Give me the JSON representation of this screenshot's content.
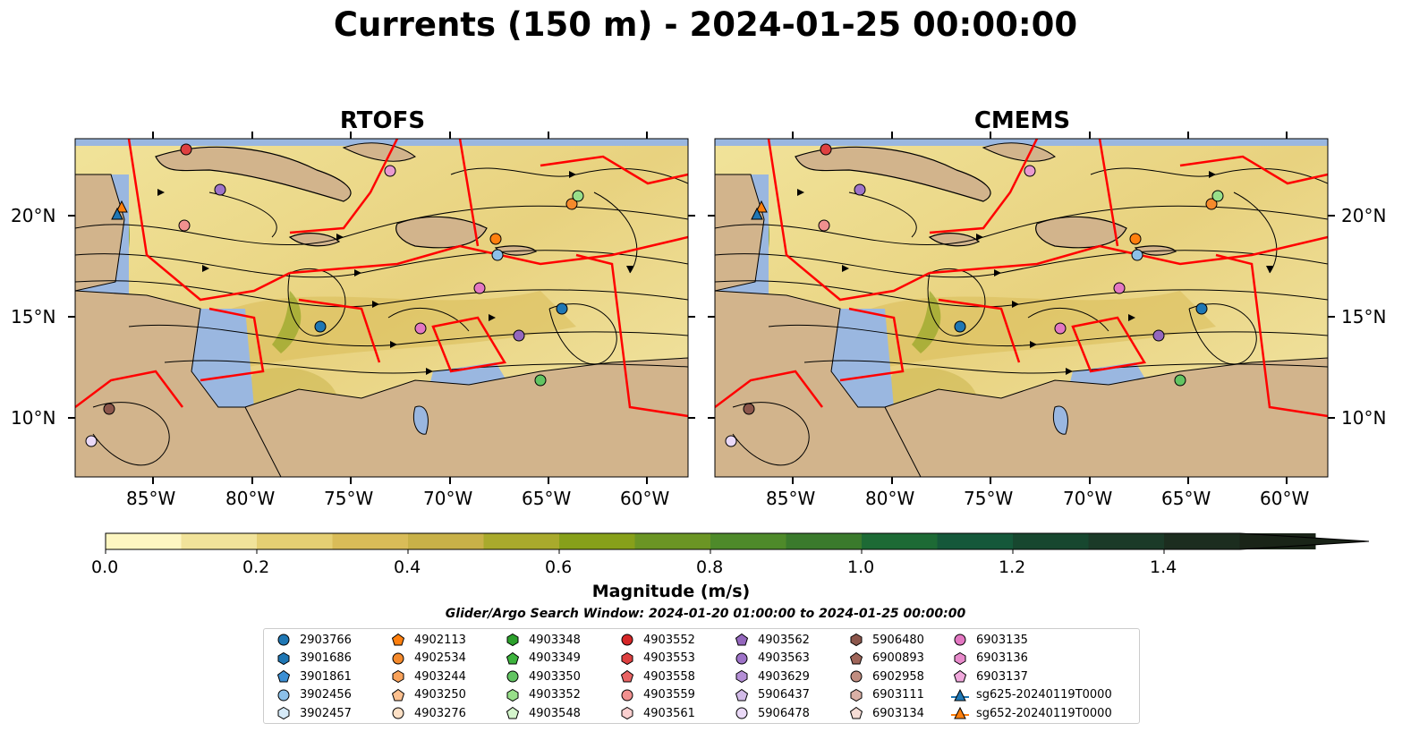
{
  "title": "Currents (150 m) - 2024-01-25 00:00:00",
  "panels": [
    {
      "title": "RTOFS"
    },
    {
      "title": "CMEMS"
    }
  ],
  "lon_ticks": [
    "85°W",
    "80°W",
    "75°W",
    "70°W",
    "65°W",
    "60°W"
  ],
  "lat_ticks": [
    "20°N",
    "15°N",
    "10°N"
  ],
  "colorbar": {
    "label": "Magnitude (m/s)",
    "ticks": [
      "0.0",
      "0.2",
      "0.4",
      "0.6",
      "0.8",
      "1.0",
      "1.2",
      "1.4"
    ],
    "colors": [
      "#fdf6c1",
      "#f1e39a",
      "#e5cf73",
      "#d9bc58",
      "#c8b148",
      "#a9aa2c",
      "#87a01a",
      "#6b9524",
      "#4e8a2a",
      "#3a7a2c",
      "#1d6a35",
      "#15583a",
      "#17472f",
      "#1b3a28",
      "#1c2d1f",
      "#1a2418"
    ]
  },
  "search_window": "Glider/Argo Search Window: 2024-01-20 01:00:00 to 2024-01-25 00:00:00",
  "colors": {
    "land": "#d2b48c",
    "water": "#9ab7e0",
    "eez": "#ff0000"
  },
  "legend": [
    {
      "label": "2903766",
      "marker": "circle",
      "color": "#1f77b4"
    },
    {
      "label": "3901686",
      "marker": "hexagon",
      "color": "#1f77b4"
    },
    {
      "label": "3901861",
      "marker": "pentagon",
      "color": "#3b8fd4"
    },
    {
      "label": "3902456",
      "marker": "circle",
      "color": "#8cc0e8"
    },
    {
      "label": "3902457",
      "marker": "hexagon",
      "color": "#d6eaf8"
    },
    {
      "label": "4902113",
      "marker": "pentagon",
      "color": "#ff7f0e"
    },
    {
      "label": "4902534",
      "marker": "circle",
      "color": "#f58a2c"
    },
    {
      "label": "4903244",
      "marker": "hexagon",
      "color": "#f9a25a"
    },
    {
      "label": "4903250",
      "marker": "pentagon",
      "color": "#fcc08f"
    },
    {
      "label": "4903276",
      "marker": "circle",
      "color": "#fde0c5"
    },
    {
      "label": "4903348",
      "marker": "hexagon",
      "color": "#2ca02c"
    },
    {
      "label": "4903349",
      "marker": "pentagon",
      "color": "#3db33d"
    },
    {
      "label": "4903350",
      "marker": "circle",
      "color": "#62c462"
    },
    {
      "label": "4903352",
      "marker": "hexagon",
      "color": "#98df8a"
    },
    {
      "label": "4903548",
      "marker": "pentagon",
      "color": "#d4f5cc"
    },
    {
      "label": "4903552",
      "marker": "circle",
      "color": "#d62728"
    },
    {
      "label": "4903553",
      "marker": "hexagon",
      "color": "#de4040"
    },
    {
      "label": "4903558",
      "marker": "pentagon",
      "color": "#e86363"
    },
    {
      "label": "4903559",
      "marker": "circle",
      "color": "#f0908f"
    },
    {
      "label": "4903561",
      "marker": "hexagon",
      "color": "#fbd0d0"
    },
    {
      "label": "4903562",
      "marker": "pentagon",
      "color": "#9467bd"
    },
    {
      "label": "4903563",
      "marker": "circle",
      "color": "#9e73c8"
    },
    {
      "label": "4903629",
      "marker": "hexagon",
      "color": "#b48fd6"
    },
    {
      "label": "5906437",
      "marker": "pentagon",
      "color": "#d2bbe8"
    },
    {
      "label": "5906478",
      "marker": "circle",
      "color": "#ead9f7"
    },
    {
      "label": "5906480",
      "marker": "hexagon",
      "color": "#8c564b"
    },
    {
      "label": "6900893",
      "marker": "pentagon",
      "color": "#a0665a"
    },
    {
      "label": "6902958",
      "marker": "circle",
      "color": "#c08d80"
    },
    {
      "label": "6903111",
      "marker": "hexagon",
      "color": "#dab0a5"
    },
    {
      "label": "6903134",
      "marker": "pentagon",
      "color": "#f5dcd5"
    },
    {
      "label": "6903135",
      "marker": "circle",
      "color": "#e377c2"
    },
    {
      "label": "6903136",
      "marker": "hexagon",
      "color": "#e88acb"
    },
    {
      "label": "6903137",
      "marker": "pentagon",
      "color": "#f0a8dc"
    },
    {
      "label": "sg625-20240119T0000",
      "marker": "triangle-line",
      "color": "#1f77b4"
    },
    {
      "label": "sg652-20240119T0000",
      "marker": "triangle-line",
      "color": "#ff7f0e"
    }
  ]
}
